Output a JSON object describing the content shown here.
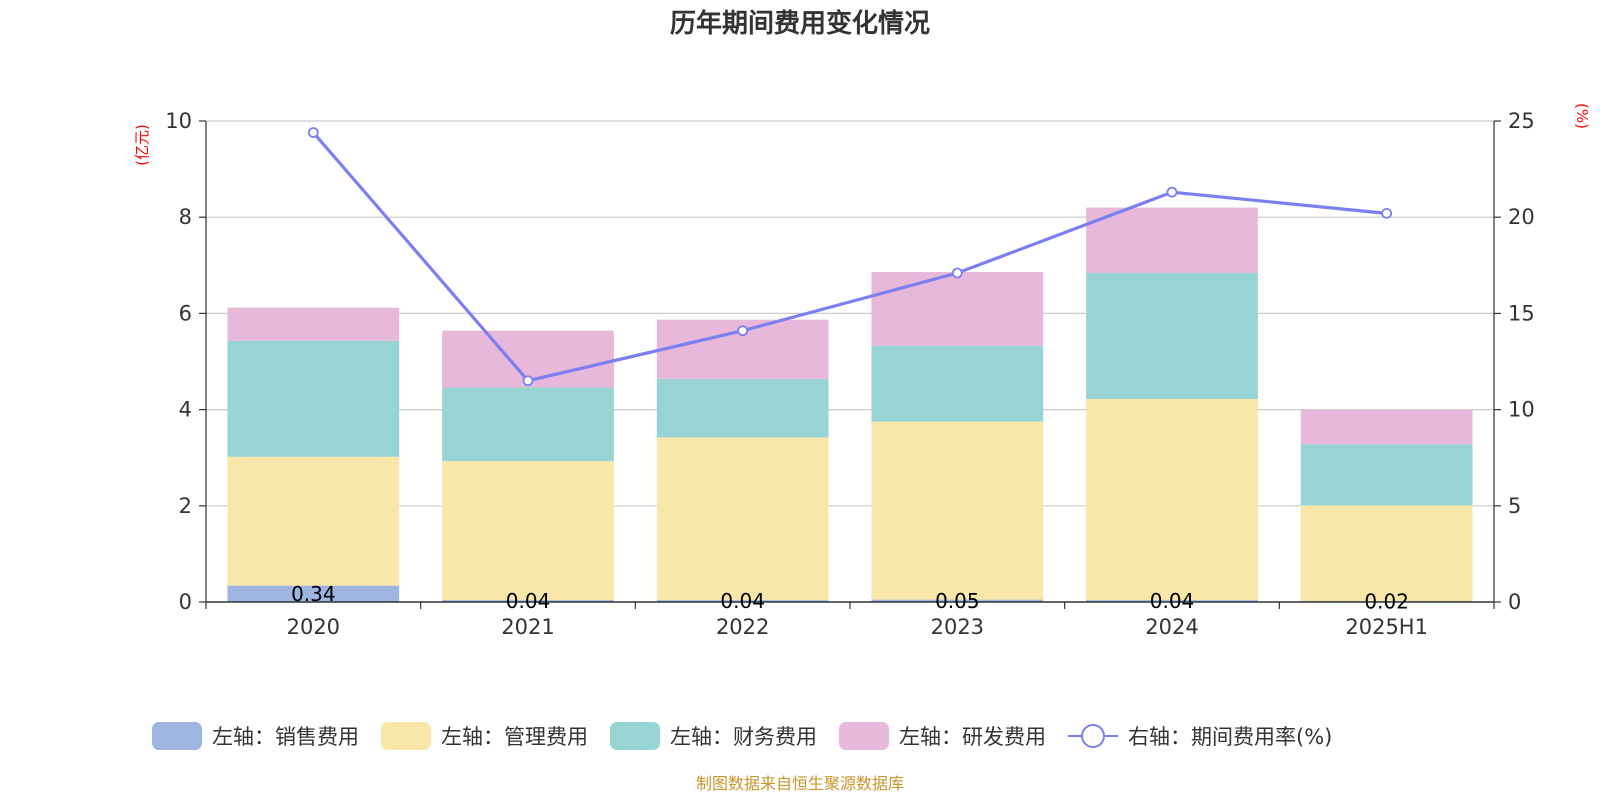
{
  "chart_data": {
    "type": "bar",
    "title": "历年期间费用变化情况",
    "categories": [
      "2020",
      "2021",
      "2022",
      "2023",
      "2024",
      "2025H1"
    ],
    "left_unit": "(亿元)",
    "right_unit": "(%)",
    "left_axis": {
      "min": 0,
      "max": 10,
      "ticks": [
        0,
        2,
        4,
        6,
        8,
        10
      ]
    },
    "right_axis": {
      "min": 0,
      "max": 25,
      "ticks": [
        0,
        5,
        10,
        15,
        20,
        25
      ]
    },
    "series": [
      {
        "name": "左轴：销售费用",
        "axis": "left",
        "color": "#9db5e0",
        "values": [
          0.34,
          0.04,
          0.04,
          0.05,
          0.04,
          0.02
        ],
        "labels": [
          "0.34",
          "0.04",
          "0.04",
          "0.05",
          "0.04",
          "0.02"
        ]
      },
      {
        "name": "左轴：管理费用",
        "axis": "left",
        "color": "#f8e7a8",
        "values": [
          2.68,
          2.89,
          3.38,
          3.7,
          4.18,
          1.99
        ]
      },
      {
        "name": "左轴：财务费用",
        "axis": "left",
        "color": "#98d4d4",
        "values": [
          2.41,
          1.53,
          1.22,
          1.58,
          2.62,
          1.27
        ]
      },
      {
        "name": "左轴：研发费用",
        "axis": "left",
        "color": "#e7b8d9",
        "values": [
          0.69,
          1.18,
          1.23,
          1.53,
          1.36,
          0.72
        ]
      },
      {
        "name": "右轴：期间费用率(%)",
        "axis": "right",
        "type": "line",
        "color": "#7b7ff0",
        "values": [
          24.4,
          11.5,
          14.1,
          17.1,
          21.3,
          20.2
        ]
      }
    ],
    "grid": true,
    "legend_position": "bottom"
  },
  "source_note": "制图数据来自恒生聚源数据库"
}
